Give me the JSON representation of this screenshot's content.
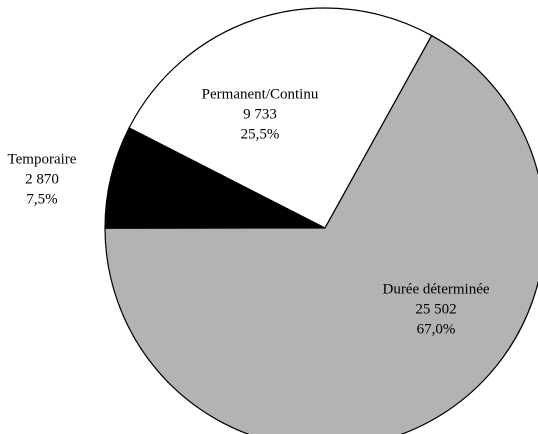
{
  "chart_data": {
    "type": "pie",
    "categories": [
      "Permanent/Continu",
      "Temporaire",
      "Durée déterminée"
    ],
    "values": [
      9733,
      2870,
      25502
    ],
    "value_labels": [
      "9 733",
      "2 870",
      "25 502"
    ],
    "percents": [
      25.5,
      7.5,
      67.0
    ],
    "percent_labels": [
      "25,5%",
      "7,5%",
      "67,0%"
    ],
    "colors": [
      "#ffffff",
      "#000000",
      "#b3b3b3"
    ]
  }
}
